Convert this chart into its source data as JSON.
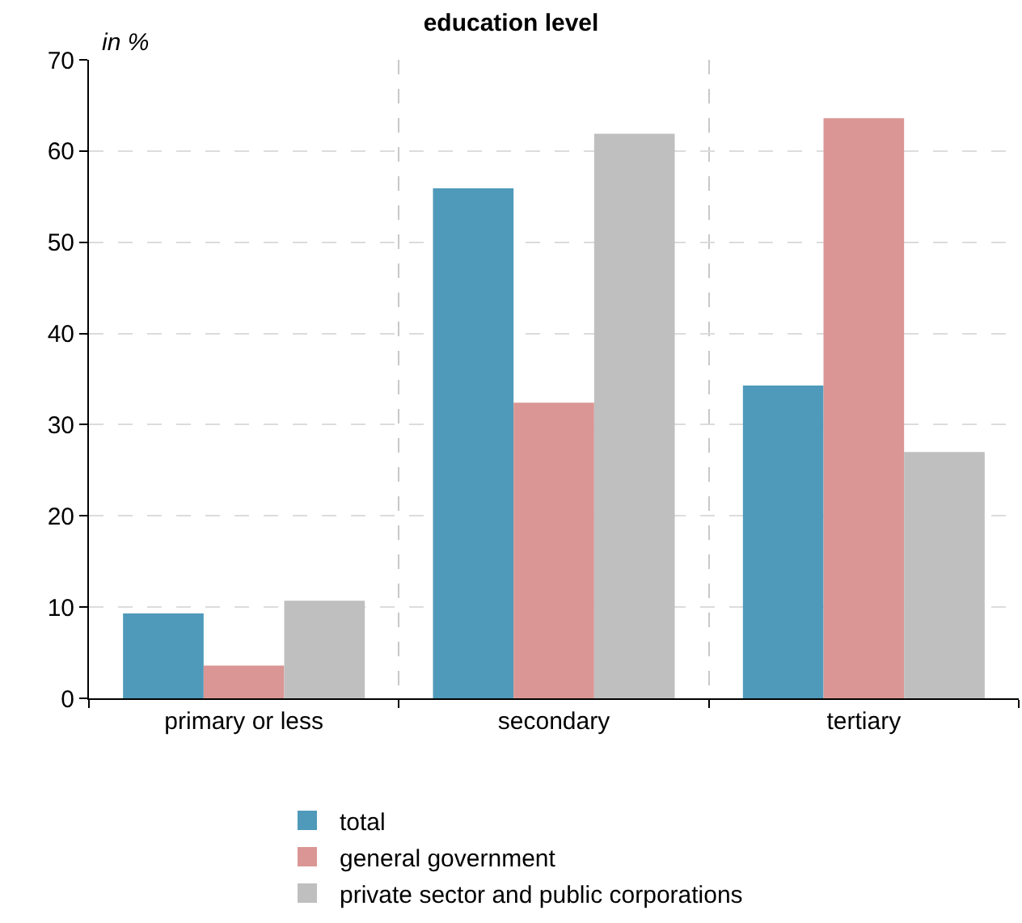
{
  "chart_data": {
    "type": "bar",
    "title": "education level",
    "ylabel": "in %",
    "categories": [
      "primary or less",
      "secondary",
      "tertiary"
    ],
    "series": [
      {
        "name": "total",
        "color": "#4f9aba",
        "values": [
          9.3,
          55.9,
          34.3
        ]
      },
      {
        "name": "general government",
        "color": "#da9694",
        "values": [
          3.6,
          32.4,
          63.6
        ]
      },
      {
        "name": "private sector and public corporations",
        "color": "#bfbfbf",
        "values": [
          10.7,
          61.9,
          27.0
        ]
      }
    ],
    "ylim": [
      0,
      70
    ],
    "yticks": [
      0,
      10,
      20,
      30,
      40,
      50,
      60,
      70
    ],
    "grid": true,
    "legend": "bottom"
  }
}
